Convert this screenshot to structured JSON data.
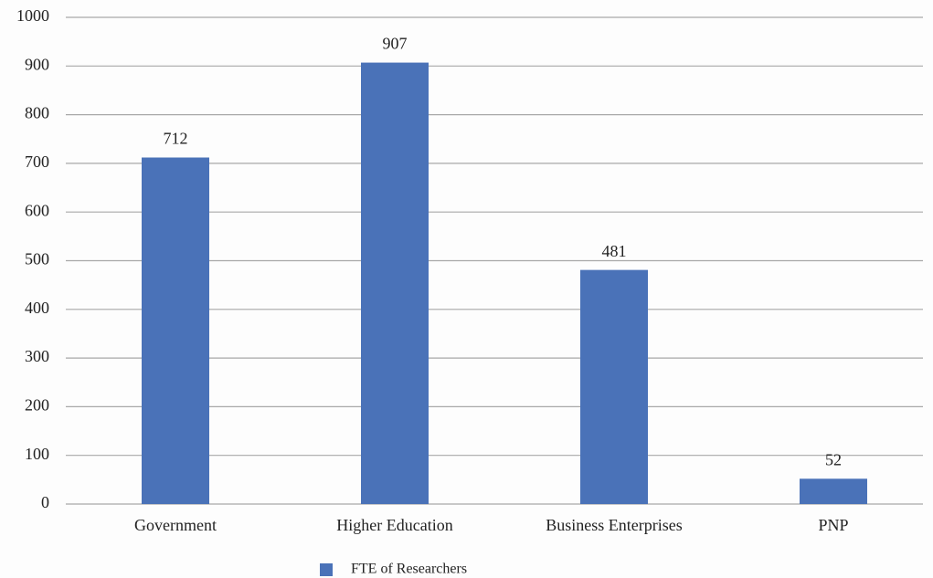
{
  "chart_data": {
    "type": "bar",
    "categories": [
      "Government",
      "Higher Education",
      "Business Enterprises",
      "PNP"
    ],
    "series": [
      {
        "name": "FTE of Researchers",
        "color": "#4a72b8",
        "values": [
          712,
          907,
          481,
          52
        ]
      }
    ],
    "ylim": [
      0,
      1000
    ],
    "yticks": [
      0,
      100,
      200,
      300,
      400,
      500,
      600,
      700,
      800,
      900,
      1000
    ],
    "grid": true,
    "legend": "bottom"
  }
}
